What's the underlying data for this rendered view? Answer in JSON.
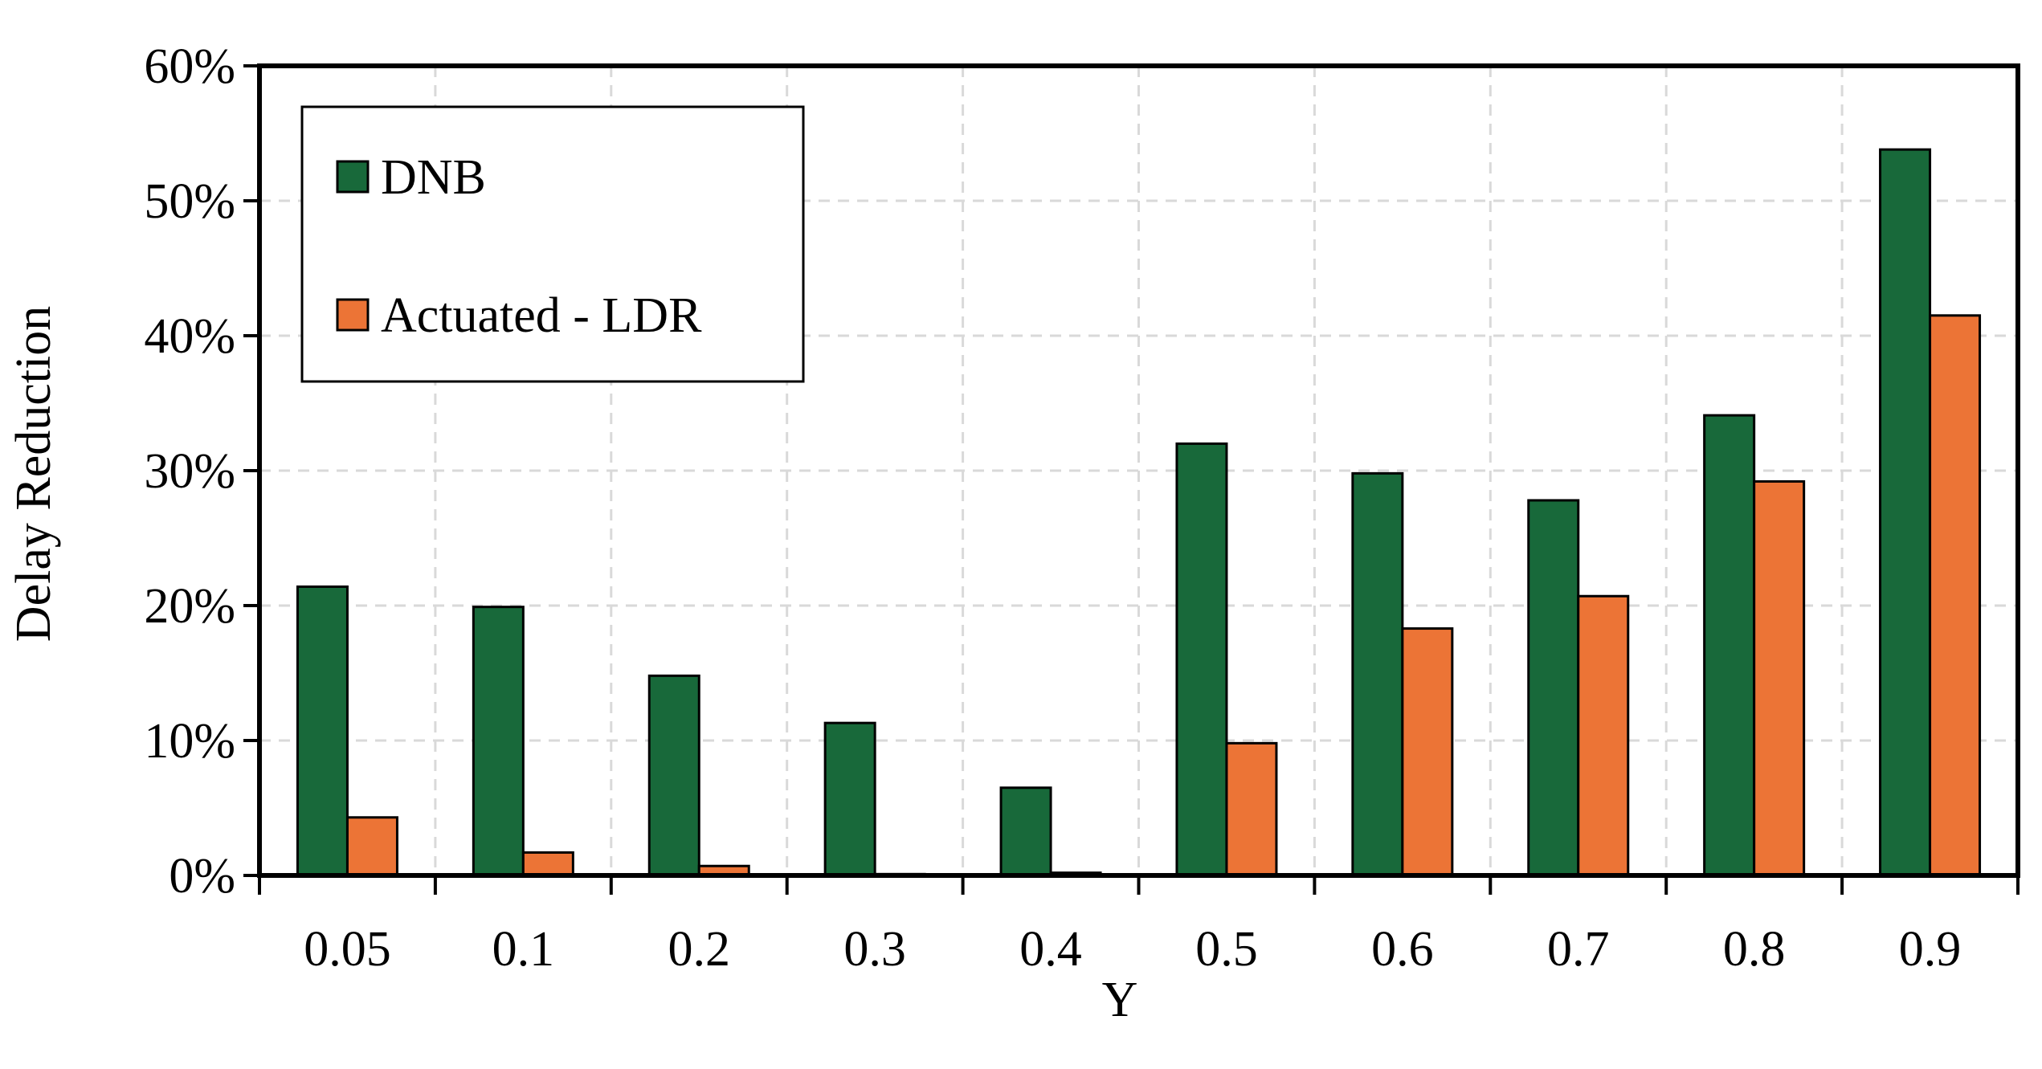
{
  "chart_data": {
    "type": "bar",
    "xlabel": "Y",
    "ylabel": "Delay Reduction",
    "categories": [
      "0.05",
      "0.1",
      "0.2",
      "0.3",
      "0.4",
      "0.5",
      "0.6",
      "0.7",
      "0.8",
      "0.9"
    ],
    "series": [
      {
        "name": "DNB",
        "color": "#18693a",
        "values": [
          21.4,
          19.9,
          14.8,
          11.3,
          6.5,
          32.0,
          29.8,
          27.8,
          34.1,
          53.8
        ]
      },
      {
        "name": "Actuated - LDR",
        "color": "#ec7436",
        "values": [
          4.3,
          1.7,
          0.7,
          0.1,
          0.2,
          9.8,
          18.3,
          20.7,
          29.2,
          41.5
        ]
      }
    ],
    "ylim": [
      0,
      60
    ],
    "yticks": [
      0,
      10,
      20,
      30,
      40,
      50,
      60
    ],
    "ytick_labels": [
      "0%",
      "10%",
      "20%",
      "30%",
      "40%",
      "50%",
      "60%"
    ],
    "grid": true,
    "legend_position": "top-left"
  }
}
